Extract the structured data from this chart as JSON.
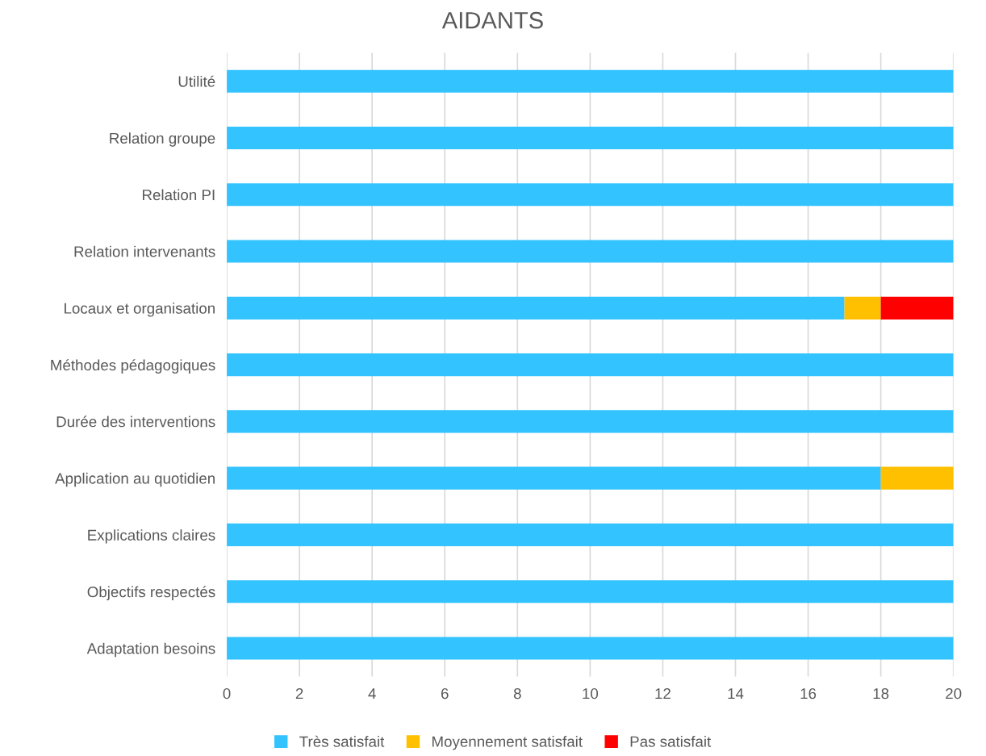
{
  "chart_data": {
    "type": "bar",
    "title": "AIDANTS",
    "orientation": "horizontal",
    "stacked": true,
    "categories": [
      "Utilité",
      "Relation groupe",
      "Relation PI",
      "Relation intervenants",
      "Locaux et organisation",
      "Méthodes pédagogiques",
      "Durée des interventions",
      "Application au quotidien",
      "Explications claires",
      "Objectifs respectés",
      "Adaptation besoins"
    ],
    "series": [
      {
        "name": "Très satisfait",
        "color": "#33c3ff",
        "values": [
          20,
          20,
          20,
          20,
          17,
          20,
          20,
          18,
          20,
          20,
          20
        ]
      },
      {
        "name": "Moyennement satisfait",
        "color": "#ffc000",
        "values": [
          0,
          0,
          0,
          0,
          1,
          0,
          0,
          2,
          0,
          0,
          0
        ]
      },
      {
        "name": "Pas satisfait",
        "color": "#ff0000",
        "values": [
          0,
          0,
          0,
          0,
          2,
          0,
          0,
          0,
          0,
          0,
          0
        ]
      }
    ],
    "xlim": [
      0,
      20
    ],
    "xticks": [
      0,
      2,
      4,
      6,
      8,
      10,
      12,
      14,
      16,
      18,
      20
    ],
    "grid": "x",
    "legend": "bottom"
  }
}
